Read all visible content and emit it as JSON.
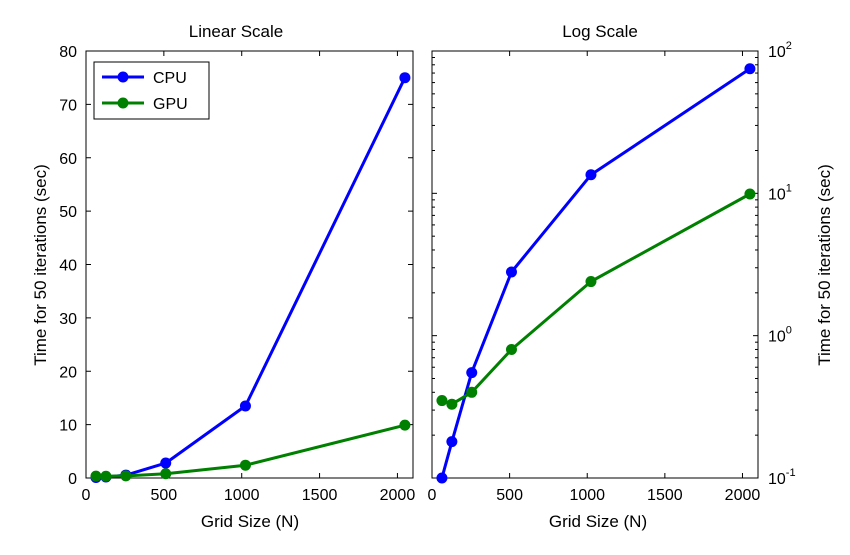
{
  "chart_data": [
    {
      "type": "line",
      "title": "Linear Scale",
      "xlabel": "Grid Size (N)",
      "ylabel": "Time for 50 iterations (sec)",
      "xlim": [
        0,
        2100
      ],
      "ylim": [
        0,
        80
      ],
      "yscale": "linear",
      "xticks": [
        0,
        500,
        1000,
        1500,
        2000
      ],
      "xtick_labels": [
        "0",
        "500",
        "1000",
        "1500",
        "2000"
      ],
      "yticks": [
        0,
        10,
        20,
        30,
        40,
        50,
        60,
        70,
        80
      ],
      "ytick_labels": [
        "0",
        "10",
        "20",
        "30",
        "40",
        "50",
        "60",
        "70",
        "80"
      ],
      "legend": "top-left",
      "grid": false,
      "x": [
        64,
        128,
        256,
        512,
        1024,
        2048
      ],
      "series": [
        {
          "name": "CPU",
          "color": "#0000ff",
          "values": [
            0.1,
            0.18,
            0.55,
            2.8,
            13.5,
            75
          ]
        },
        {
          "name": "GPU",
          "color": "#008000",
          "values": [
            0.35,
            0.33,
            0.4,
            0.8,
            2.4,
            9.9
          ]
        }
      ]
    },
    {
      "type": "line",
      "title": "Log Scale",
      "xlabel": "Grid Size (N)",
      "ylabel": "Time for 50 iterations (sec)",
      "xlim": [
        0,
        2100
      ],
      "ylim": [
        0.1,
        100
      ],
      "yscale": "log",
      "xticks": [
        0,
        500,
        1000,
        1500,
        2000
      ],
      "xtick_labels": [
        "0",
        "500",
        "1000",
        "1500",
        "2000"
      ],
      "yticks": [
        0.1,
        1,
        10,
        100
      ],
      "ytick_labels": [
        {
          "base": "10",
          "exp": "-1"
        },
        {
          "base": "10",
          "exp": "0"
        },
        {
          "base": "10",
          "exp": "1"
        },
        {
          "base": "10",
          "exp": "2"
        }
      ],
      "yaxis_side": "right",
      "grid": false,
      "x": [
        64,
        128,
        256,
        512,
        1024,
        2048
      ],
      "series": [
        {
          "name": "CPU",
          "color": "#0000ff",
          "values": [
            0.1,
            0.18,
            0.55,
            2.8,
            13.5,
            75
          ]
        },
        {
          "name": "GPU",
          "color": "#008000",
          "values": [
            0.35,
            0.33,
            0.4,
            0.8,
            2.4,
            9.9
          ]
        }
      ]
    }
  ]
}
